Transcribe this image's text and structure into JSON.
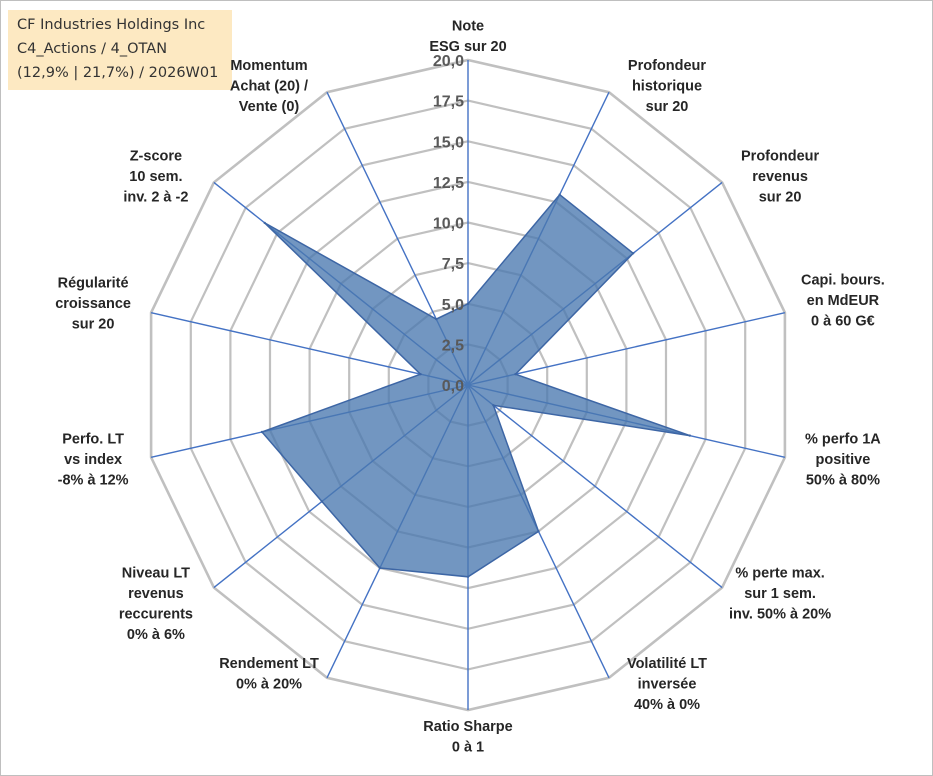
{
  "title_box": {
    "line1": "CF Industries Holdings Inc",
    "line2": "C4_Actions / 4_OTAN",
    "line3": "(12,9% | 21,7%) / 2026W01"
  },
  "colors": {
    "grid": "#c0c0c0",
    "spoke": "#4472c4",
    "fill": "#4a78b0",
    "stroke": "#3d66a5"
  },
  "chart_data": {
    "type": "radar",
    "title": "",
    "r_range": [
      0,
      20
    ],
    "r_ticks": [
      "0,0",
      "2,5",
      "5,0",
      "7,5",
      "10,0",
      "12,5",
      "15,0",
      "17,5",
      "20,0"
    ],
    "grid": true,
    "axes": [
      {
        "label": [
          "Note",
          "ESG sur 20"
        ],
        "value": 5.0
      },
      {
        "label": [
          "Profondeur",
          "historique",
          "sur 20"
        ],
        "value": 13.0
      },
      {
        "label": [
          "Profondeur",
          "revenus",
          "sur 20"
        ],
        "value": 13.0
      },
      {
        "label": [
          "Capi. bours.",
          "en MdEUR",
          "0 à 60 G€"
        ],
        "value": 3.0
      },
      {
        "label": [
          "% perfo 1A",
          "positive",
          "50% à 80%"
        ],
        "value": 14.0
      },
      {
        "label": [
          "% perte max.",
          "sur 1 sem.",
          "inv. 50% à 20%"
        ],
        "value": 2.0
      },
      {
        "label": [
          "Volatilité LT",
          "inversée",
          "40% à 0%"
        ],
        "value": 10.0
      },
      {
        "label": [
          "Ratio Sharpe",
          "0 à 1"
        ],
        "value": 11.8
      },
      {
        "label": [
          "Rendement LT",
          "0% à 20%"
        ],
        "value": 12.5
      },
      {
        "label": [
          "Niveau LT",
          "revenus",
          "reccurents",
          "0% à 6%"
        ],
        "value": 11.5
      },
      {
        "label": [
          "Perfo. LT",
          "vs index",
          "-8% à 12%"
        ],
        "value": 13.0
      },
      {
        "label": [
          "Régularité",
          "croissance",
          "sur 20"
        ],
        "value": 3.0
      },
      {
        "label": [
          "Z-score",
          "10 sem.",
          "inv. 2 à -2"
        ],
        "value": 16.0
      },
      {
        "label": [
          "Momentum",
          "Achat (20) /",
          "Vente (0)"
        ],
        "value": 4.5
      }
    ]
  }
}
